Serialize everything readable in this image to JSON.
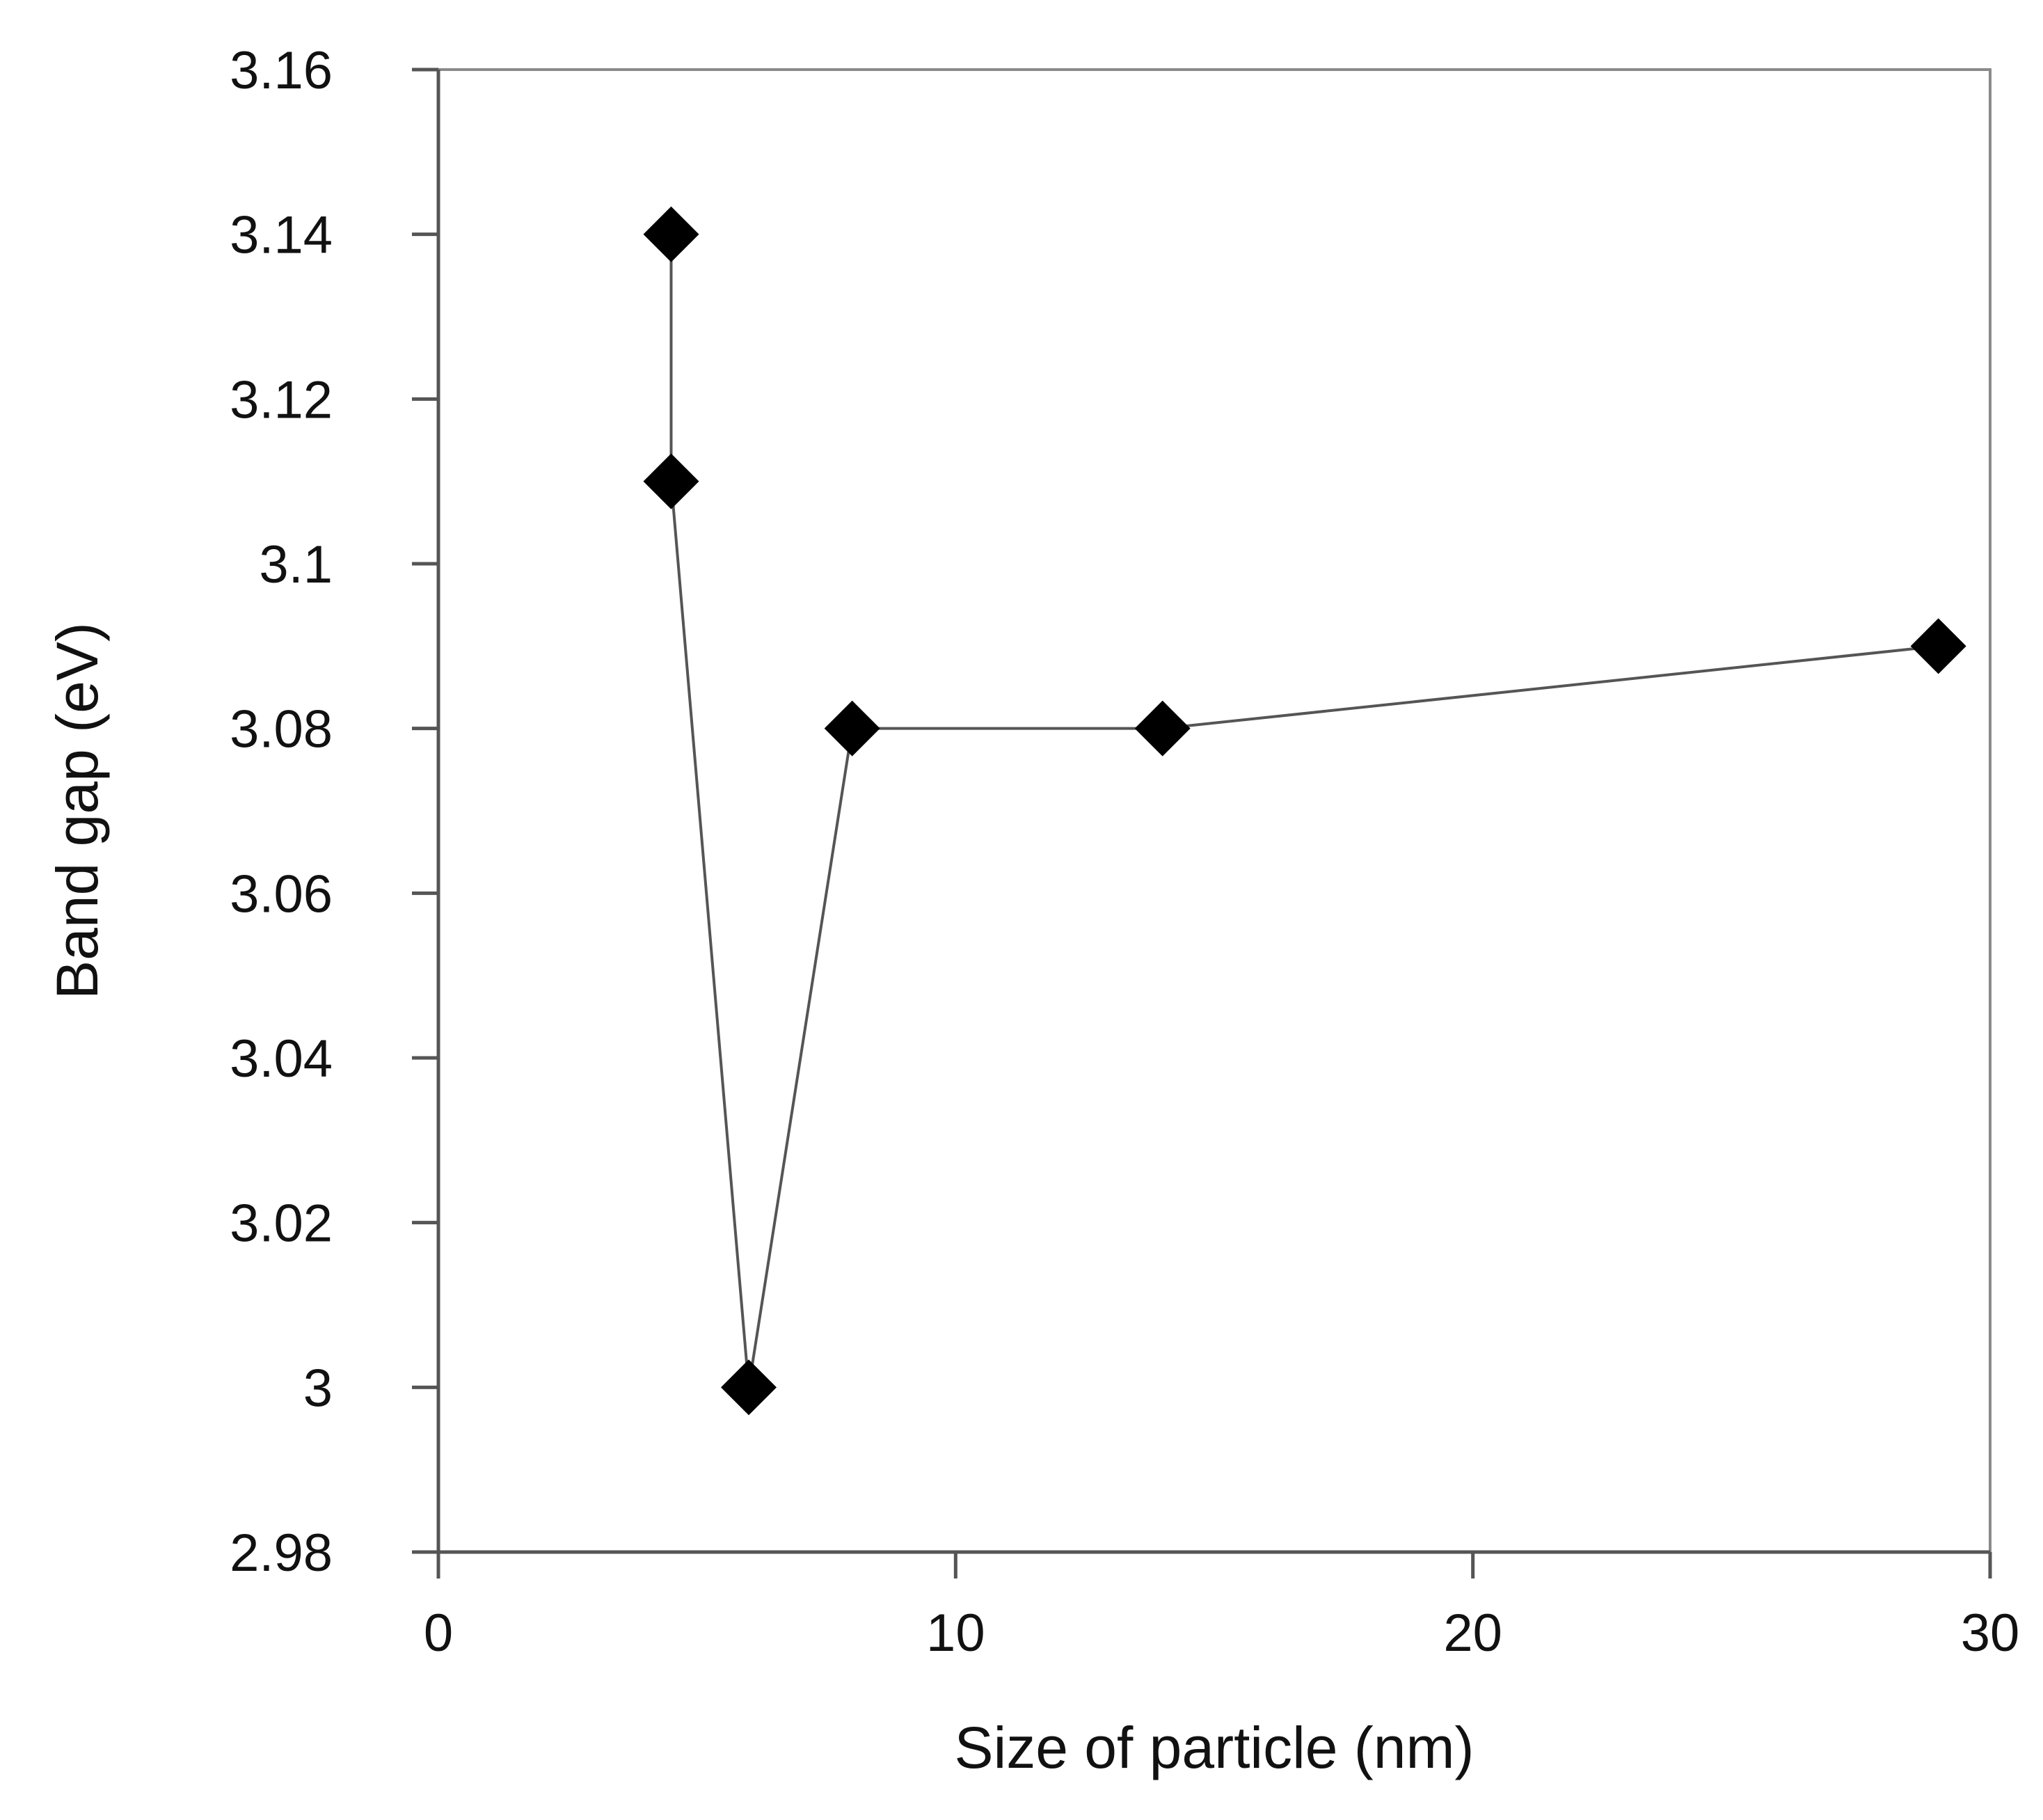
{
  "chart_data": {
    "type": "line",
    "title": "",
    "xlabel": "Size of particle (nm)",
    "ylabel": "Band gap (eV)",
    "xlim": [
      0,
      30
    ],
    "ylim": [
      2.98,
      3.16
    ],
    "x_ticks": [
      0,
      10,
      20,
      30
    ],
    "x_tick_labels": [
      "0",
      "10",
      "20",
      "30"
    ],
    "y_ticks": [
      2.98,
      3.0,
      3.02,
      3.04,
      3.06,
      3.08,
      3.1,
      3.12,
      3.14,
      3.16
    ],
    "y_tick_labels": [
      "2.98",
      "3",
      "3.02",
      "3.04",
      "3.06",
      "3.08",
      "3.1",
      "3.12",
      "3.14",
      "3.16"
    ],
    "grid": false,
    "marker": "diamond",
    "series": [
      {
        "name": "Band gap",
        "x": [
          4.5,
          4.5,
          6,
          8,
          14,
          29
        ],
        "y": [
          3.14,
          3.11,
          3.0,
          3.08,
          3.08,
          3.09
        ]
      }
    ],
    "colors": {
      "line": "#555555",
      "marker": "#000000",
      "axis": "#555555",
      "frame": "#8a8a8a"
    }
  }
}
